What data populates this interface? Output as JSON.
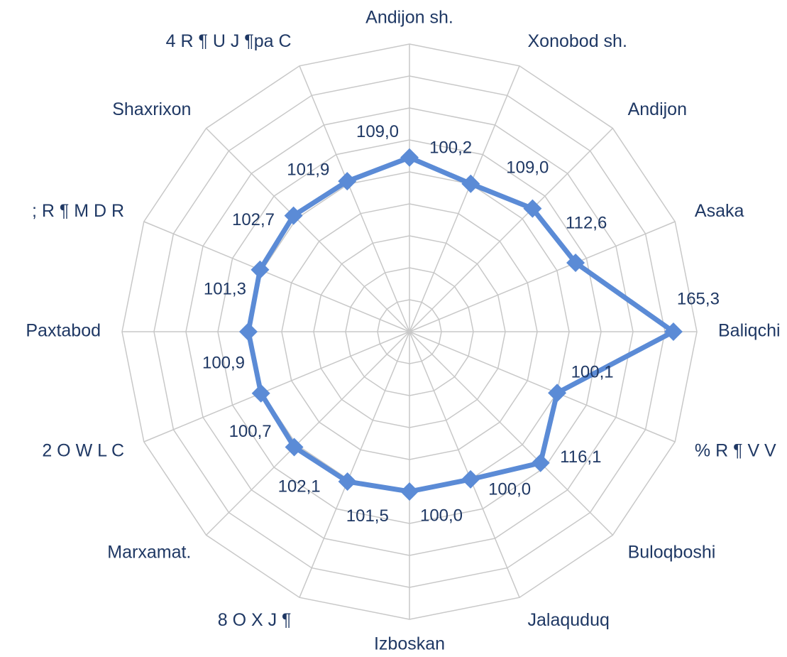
{
  "chart_data": {
    "type": "radar",
    "categories": [
      "Andijon sh.",
      "Xonobod sh.",
      "Andijon",
      "Asaka",
      "Baliqchi",
      "% R ¶ V V",
      "Buloqboshi",
      "Jalaquduq",
      "Izboskan",
      "8 O X J ¶",
      "Marxamat.",
      "2 O W L C",
      "Paxtabod",
      "; R ¶ M D R",
      "Shaxrixon",
      "4 R ¶ U J ¶pa C"
    ],
    "series": [
      {
        "values": [
          109.0,
          100.2,
          109.0,
          112.6,
          165.3,
          100.1,
          116.1,
          100.0,
          100.0,
          101.5,
          102.1,
          100.7,
          100.9,
          101.3,
          102.7,
          101.9
        ],
        "labels": [
          "109,0",
          "100,2",
          "109,0",
          "112,6",
          "165,3",
          "100,1",
          "116,1",
          "100,0",
          "100,0",
          "101,5",
          "102,1",
          "100,7",
          "100,9",
          "101,3",
          "102,7",
          "101,9"
        ]
      }
    ],
    "rlim": [
      0,
      180
    ],
    "grid": true,
    "legend": "none",
    "colors": {
      "series": "#5b8bd6",
      "grid": "#c8c8c8",
      "text": "#1f3864"
    }
  }
}
